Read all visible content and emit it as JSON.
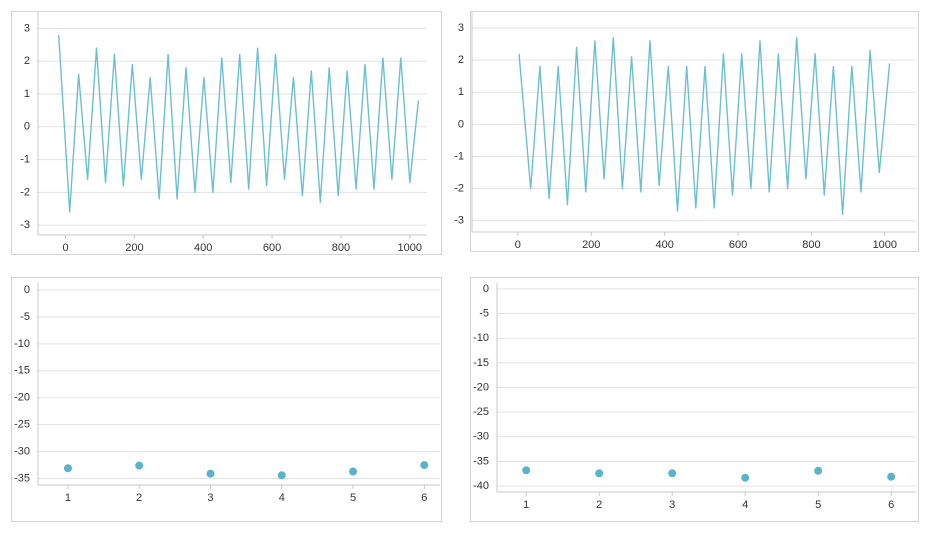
{
  "chart_data": [
    {
      "type": "line",
      "color": "#6cbfd1",
      "grid": true,
      "xlim": [
        -80,
        1050
      ],
      "ylim": [
        -3.3,
        3.5
      ],
      "xticks": [
        0,
        200,
        400,
        600,
        800,
        1000
      ],
      "yticks": [
        -3,
        -2,
        -1,
        0,
        1,
        2,
        3
      ],
      "x": [
        -20,
        12,
        38,
        64,
        90,
        116,
        142,
        168,
        194,
        220,
        246,
        272,
        298,
        324,
        350,
        376,
        402,
        428,
        454,
        480,
        506,
        532,
        558,
        584,
        610,
        636,
        662,
        688,
        714,
        740,
        766,
        792,
        818,
        844,
        870,
        896,
        922,
        948,
        974,
        1000,
        1025
      ],
      "values": [
        2.8,
        -2.6,
        1.6,
        -1.6,
        2.4,
        -1.7,
        2.2,
        -1.8,
        1.9,
        -1.6,
        1.5,
        -2.2,
        2.2,
        -2.2,
        1.8,
        -2.0,
        1.5,
        -2.0,
        2.1,
        -1.7,
        2.2,
        -1.9,
        2.4,
        -1.8,
        2.2,
        -1.6,
        1.5,
        -2.1,
        1.7,
        -2.3,
        1.8,
        -2.1,
        1.7,
        -1.9,
        1.9,
        -1.9,
        2.1,
        -1.6,
        2.1,
        -1.7,
        0.8
      ]
    },
    {
      "type": "line",
      "color": "#6cbfd1",
      "grid": true,
      "xlim": [
        -125,
        1085
      ],
      "ylim": [
        -3.35,
        3.5
      ],
      "xticks": [
        0,
        200,
        400,
        600,
        800,
        1000
      ],
      "yticks": [
        -3,
        -2,
        -1,
        0,
        1,
        2,
        3
      ],
      "x": [
        3,
        35,
        60,
        85,
        110,
        135,
        160,
        185,
        210,
        235,
        260,
        285,
        310,
        335,
        360,
        385,
        410,
        435,
        460,
        485,
        510,
        535,
        560,
        585,
        610,
        635,
        660,
        685,
        710,
        735,
        760,
        785,
        810,
        835,
        860,
        885,
        910,
        935,
        960,
        985,
        1013
      ],
      "values": [
        2.2,
        -2.0,
        1.8,
        -2.3,
        1.8,
        -2.5,
        2.4,
        -2.1,
        2.6,
        -1.7,
        2.7,
        -2.0,
        2.1,
        -2.1,
        2.6,
        -1.9,
        1.8,
        -2.7,
        1.8,
        -2.6,
        1.8,
        -2.6,
        2.2,
        -2.2,
        2.2,
        -2.0,
        2.6,
        -2.1,
        2.2,
        -2.0,
        2.7,
        -1.7,
        2.2,
        -2.2,
        1.8,
        -2.8,
        1.8,
        -2.1,
        2.3,
        -1.5,
        1.9
      ]
    },
    {
      "type": "scatter",
      "color": "#5ab4c8",
      "grid": true,
      "xlim": [
        0.58,
        6.22
      ],
      "ylim": [
        -36.2,
        1.3
      ],
      "xticks": [
        1,
        2,
        3,
        4,
        5,
        6
      ],
      "yticks": [
        0,
        -5,
        -10,
        -15,
        -20,
        -25,
        -30,
        -35
      ],
      "x": [
        1,
        2,
        3,
        4,
        5,
        6
      ],
      "values": [
        -33.1,
        -32.6,
        -34.1,
        -34.4,
        -33.7,
        -32.5
      ]
    },
    {
      "type": "scatter",
      "color": "#5ab4c8",
      "grid": true,
      "xlim": [
        0.6,
        6.34
      ],
      "ylim": [
        -41.2,
        1.2
      ],
      "xticks": [
        1,
        2,
        3,
        4,
        5,
        6
      ],
      "yticks": [
        0,
        -5,
        -10,
        -15,
        -20,
        -25,
        -30,
        -35,
        -40
      ],
      "x": [
        1,
        2,
        3,
        4,
        5,
        6
      ],
      "values": [
        -36.8,
        -37.4,
        -37.4,
        -38.3,
        -36.9,
        -38.1
      ]
    }
  ]
}
